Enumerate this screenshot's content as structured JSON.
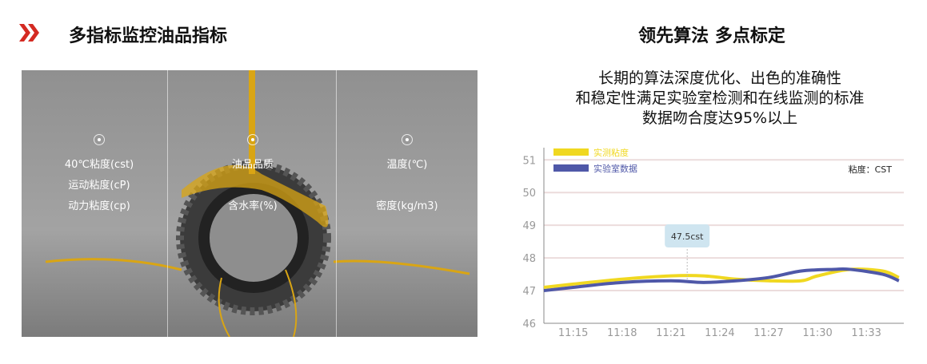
{
  "left": {
    "title": "多指标监控油品指标",
    "icon": "double-chevron-right-icon",
    "columns": [
      {
        "items": [
          "40℃粘度(cst)",
          "运动粘度(cP)",
          "动力粘度(cp)"
        ]
      },
      {
        "items": [
          "油品品质",
          "",
          "含水率(%)"
        ]
      },
      {
        "items": [
          "温度(℃)",
          "",
          "密度(kg/m3)"
        ]
      }
    ]
  },
  "right": {
    "title": "领先算法 多点标定",
    "description": [
      "长期的算法深度优化、出色的准确性",
      "和稳定性满足实验室检测和在线监测的标准",
      "数据吻合度达95%以上"
    ]
  },
  "chart_data": {
    "type": "line",
    "unit_label": "粘度：CST",
    "tooltip": {
      "x": "11:22",
      "value": "47.5cst"
    },
    "x_ticks": [
      "11:15",
      "11:18",
      "11:21",
      "11:24",
      "11:27",
      "11:30",
      "11:33"
    ],
    "y_ticks": [
      46,
      47,
      48,
      49,
      50,
      51
    ],
    "ylim": [
      46,
      51.3
    ],
    "grid": true,
    "legend": "top-left",
    "series": [
      {
        "name": "实测粘度",
        "color": "#f0d820",
        "points": [
          [
            "11:13",
            47.1
          ],
          [
            "11:15",
            47.2
          ],
          [
            "11:18",
            47.35
          ],
          [
            "11:21",
            47.45
          ],
          [
            "11:23",
            47.45
          ],
          [
            "11:25",
            47.35
          ],
          [
            "11:27",
            47.3
          ],
          [
            "11:29",
            47.3
          ],
          [
            "11:30",
            47.45
          ],
          [
            "11:32",
            47.65
          ],
          [
            "11:34",
            47.6
          ],
          [
            "11:35",
            47.4
          ]
        ]
      },
      {
        "name": "实验室数据",
        "color": "#4f58a8",
        "points": [
          [
            "11:13",
            47.0
          ],
          [
            "11:15",
            47.1
          ],
          [
            "11:18",
            47.25
          ],
          [
            "11:21",
            47.3
          ],
          [
            "11:23",
            47.25
          ],
          [
            "11:25",
            47.3
          ],
          [
            "11:27",
            47.4
          ],
          [
            "11:29",
            47.6
          ],
          [
            "11:31",
            47.65
          ],
          [
            "11:32",
            47.65
          ],
          [
            "11:34",
            47.5
          ],
          [
            "11:35",
            47.3
          ]
        ]
      }
    ]
  }
}
